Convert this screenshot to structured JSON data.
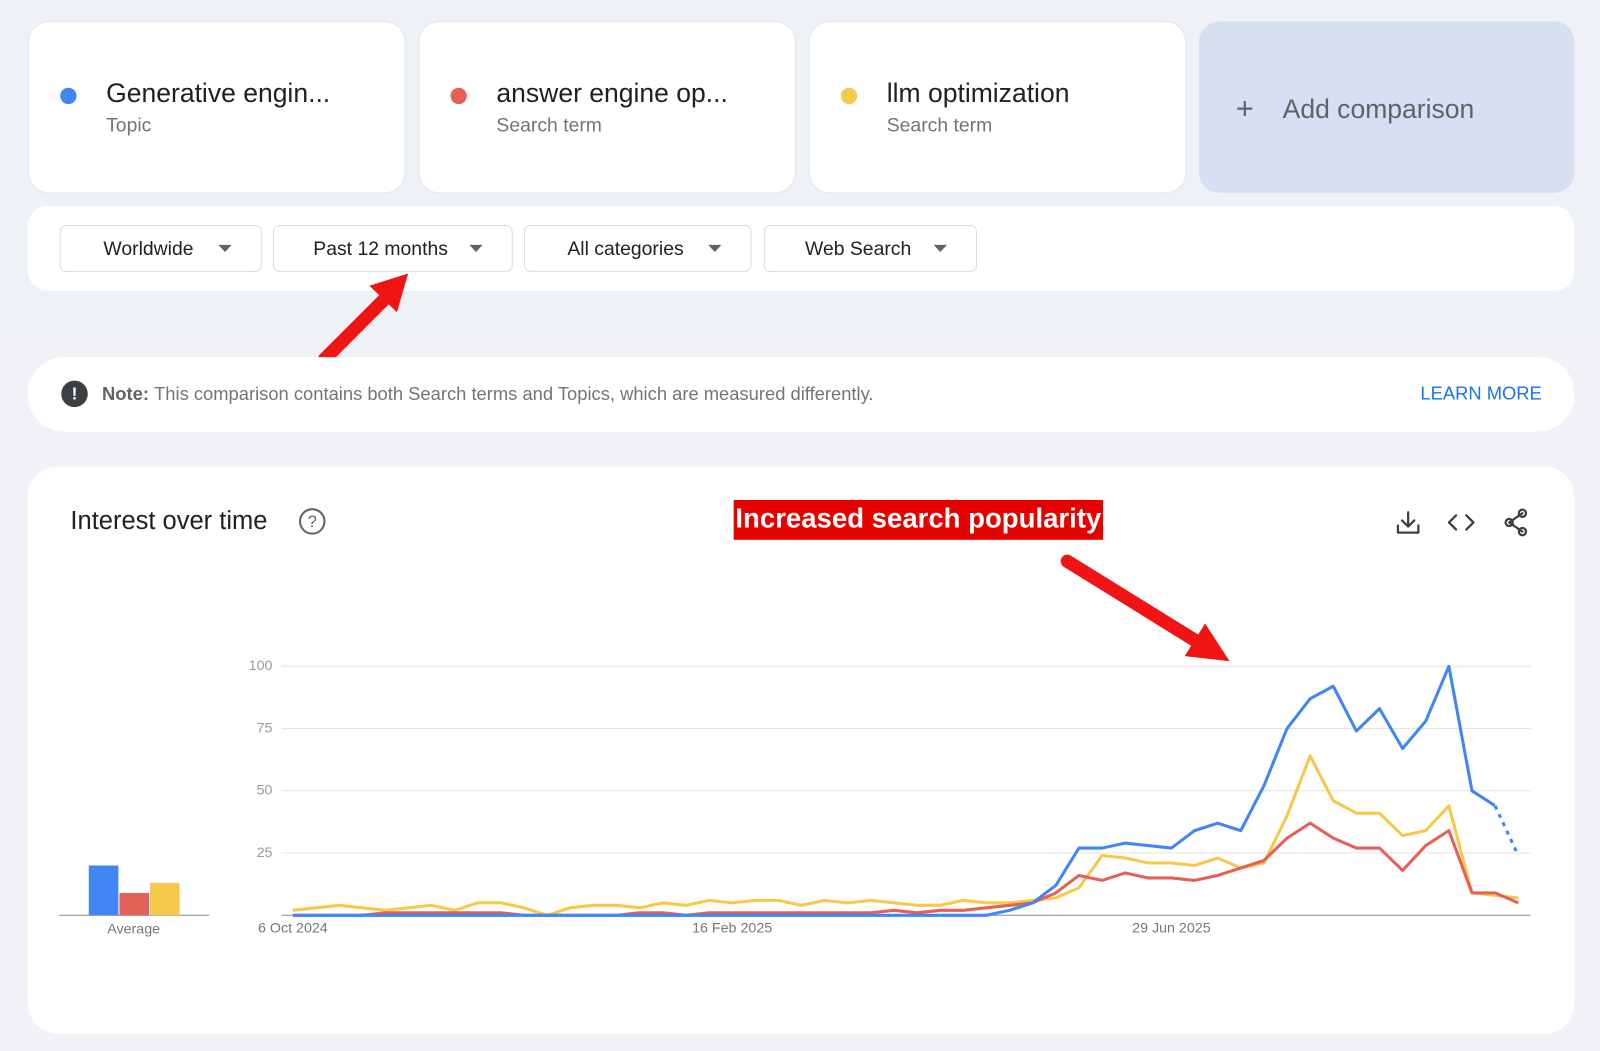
{
  "comparison": {
    "add_label": "Add comparison"
  },
  "filters": [
    "Worldwide",
    "Past 12 months",
    "All categories",
    "Web Search"
  ],
  "note": {
    "label": "Note:",
    "text": "This comparison contains both Search terms and Topics, which are measured differently.",
    "link": "LEARN MORE"
  },
  "chart_data": {
    "type": "line",
    "title": "Interest over time",
    "annotation": "Increased search popularity",
    "average_label": "Average",
    "categories": [
      "6 Oct 2024",
      null,
      null,
      null,
      null,
      null,
      null,
      null,
      null,
      null,
      null,
      null,
      null,
      null,
      null,
      null,
      null,
      null,
      null,
      "16 Feb 2025",
      null,
      null,
      null,
      null,
      null,
      null,
      null,
      null,
      null,
      null,
      null,
      null,
      null,
      null,
      null,
      null,
      null,
      null,
      "29 Jun 2025",
      null,
      null,
      null,
      null,
      null,
      null,
      null,
      null,
      null,
      null,
      null,
      null,
      null,
      null,
      null
    ],
    "ylim": [
      0,
      100
    ],
    "yticks": [
      25,
      50,
      75,
      100
    ],
    "grid": true,
    "series": [
      {
        "name": "Generative engin...",
        "kind": "Topic",
        "color": "#4285f4",
        "average": 20,
        "partial_last": true,
        "values": [
          0,
          0,
          0,
          0,
          0,
          0,
          0,
          0,
          0,
          0,
          0,
          0,
          0,
          0,
          0,
          0,
          0,
          0,
          0,
          0,
          0,
          0,
          0,
          0,
          0,
          0,
          0,
          0,
          0,
          0,
          0,
          2,
          5,
          12,
          27,
          27,
          29,
          28,
          27,
          34,
          37,
          34,
          52,
          75,
          87,
          92,
          74,
          83,
          67,
          78,
          100,
          50,
          44,
          24
        ]
      },
      {
        "name": "answer engine op...",
        "kind": "Search term",
        "color": "#e36157",
        "average": 9,
        "values": [
          0,
          0,
          0,
          0,
          1,
          1,
          1,
          1,
          1,
          1,
          0,
          0,
          0,
          0,
          0,
          1,
          1,
          0,
          1,
          1,
          1,
          1,
          1,
          1,
          1,
          1,
          2,
          1,
          2,
          2,
          3,
          4,
          5,
          9,
          16,
          14,
          17,
          15,
          15,
          14,
          16,
          19,
          22,
          31,
          37,
          31,
          27,
          27,
          18,
          28,
          34,
          9,
          9,
          5
        ]
      },
      {
        "name": "llm optimization",
        "kind": "Search term",
        "color": "#f6c94a",
        "average": 13,
        "values": [
          2,
          3,
          4,
          3,
          2,
          3,
          4,
          2,
          5,
          5,
          3,
          0,
          3,
          4,
          4,
          3,
          5,
          4,
          6,
          5,
          6,
          6,
          4,
          6,
          5,
          6,
          5,
          4,
          4,
          6,
          5,
          5,
          6,
          7,
          11,
          24,
          23,
          21,
          21,
          20,
          23,
          19,
          21,
          40,
          64,
          46,
          41,
          41,
          32,
          34,
          44,
          9,
          8,
          7
        ]
      }
    ]
  }
}
